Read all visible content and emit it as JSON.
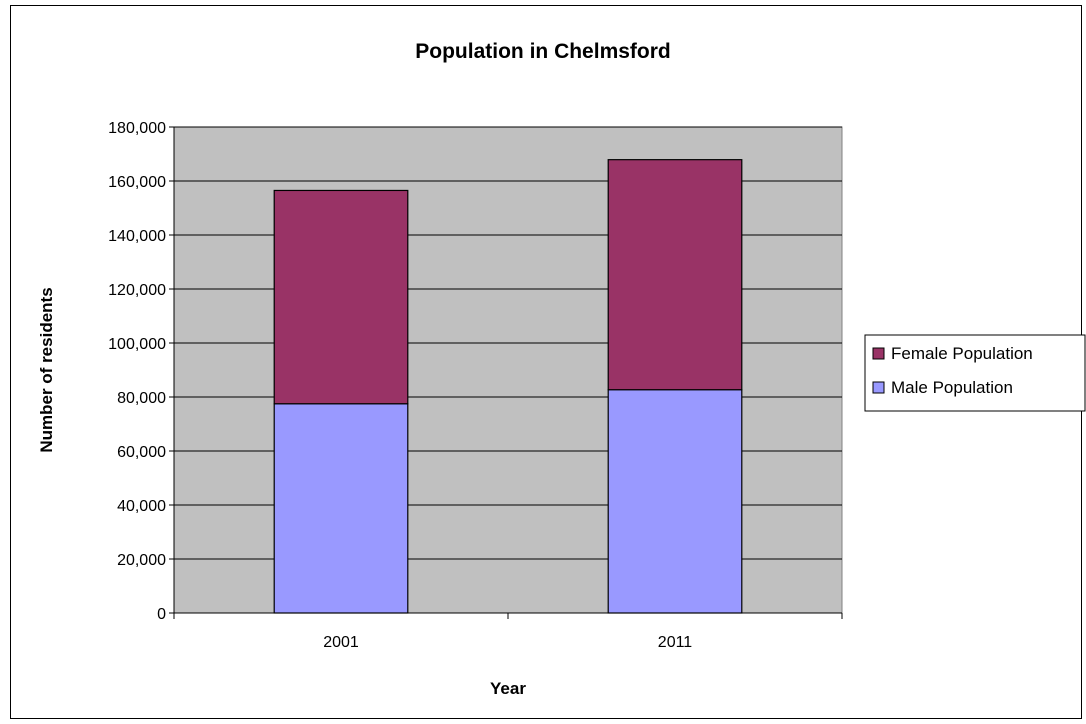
{
  "chart_data": {
    "type": "bar",
    "stacked": true,
    "title": "Population in Chelmsford",
    "xlabel": "Year",
    "ylabel": "Number of residents",
    "categories": [
      "2001",
      "2011"
    ],
    "series": [
      {
        "name": "Male Population",
        "values": [
          77500,
          82700
        ],
        "color": "#9999ff"
      },
      {
        "name": "Female Population",
        "values": [
          79000,
          85200
        ],
        "color": "#993366"
      }
    ],
    "ylim": [
      0,
      180000
    ],
    "yticks": [
      0,
      20000,
      40000,
      60000,
      80000,
      100000,
      120000,
      140000,
      160000,
      180000
    ],
    "ytick_labels": [
      "0",
      "20,000",
      "40,000",
      "60,000",
      "80,000",
      "100,000",
      "120,000",
      "140,000",
      "160,000",
      "180,000"
    ],
    "grid": true,
    "legend_position": "right",
    "legend_order": [
      "Female Population",
      "Male Population"
    ],
    "plot_background": "#c0c0c0"
  }
}
